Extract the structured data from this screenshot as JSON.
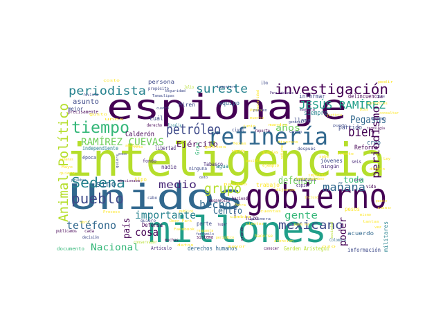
{
  "wordcloud": {
    "palette": {
      "dark_purple": "#440154",
      "purple": "#482878",
      "indigo": "#3e4a89",
      "blue": "#31688e",
      "teal_blue": "#26828e",
      "teal": "#1f9e89",
      "green": "#35b779",
      "light_green": "#6ece58",
      "lime": "#b5de2b",
      "yellow": "#fde725"
    },
    "words": [
      {
        "text": "inteligencia",
        "color": "#b5de2b"
      },
      {
        "text": "espionaje",
        "color": "#440154"
      },
      {
        "text": "Unidos",
        "color": "#31688e"
      },
      {
        "text": "gobierno",
        "color": "#440154"
      },
      {
        "text": "millones",
        "color": "#1f9e89"
      },
      {
        "text": "refinería",
        "color": "#31688e"
      },
      {
        "text": "investigación",
        "color": "#440154"
      },
      {
        "text": "periodista",
        "color": "#26828e"
      },
      {
        "text": "sureste",
        "color": "#26828e"
      },
      {
        "text": "tiempo",
        "color": "#35b779"
      },
      {
        "text": "petróleo",
        "color": "#3e4a89"
      },
      {
        "text": "JESÚS RAMÍREZ",
        "color": "#1f9e89"
      },
      {
        "text": "Pegasus",
        "color": "#31688e"
      },
      {
        "text": "RAMÍREZ CUEVAS",
        "color": "#6ece58"
      },
      {
        "text": "periodismo",
        "color": "#440154"
      },
      {
        "text": "bien",
        "color": "#440154"
      },
      {
        "text": "Animal Político",
        "color": "#b5de2b"
      },
      {
        "text": "Sedena",
        "color": "#26828e"
      },
      {
        "text": "pueblo",
        "color": "#3e4a89"
      },
      {
        "text": "grupo",
        "color": "#b5de2b"
      },
      {
        "text": "medio",
        "color": "#482878"
      },
      {
        "text": "defensor",
        "color": "#6ece58"
      },
      {
        "text": "mañana",
        "color": "#31688e"
      },
      {
        "text": "hecho",
        "color": "#31688e"
      },
      {
        "text": "Centro",
        "color": "#31688e"
      },
      {
        "text": "importante",
        "color": "#26828e"
      },
      {
        "text": "gente",
        "color": "#35b779"
      },
      {
        "text": "mexicano",
        "color": "#3e4a89"
      },
      {
        "text": "teléfono",
        "color": "#31688e"
      },
      {
        "text": "cosa",
        "color": "#440154"
      },
      {
        "text": "país",
        "color": "#440154"
      },
      {
        "text": "poder",
        "color": "#440154"
      },
      {
        "text": "Nacional",
        "color": "#35b779"
      },
      {
        "text": "sino",
        "color": "#31688e"
      },
      {
        "text": "Ejército",
        "color": "#440154"
      },
      {
        "text": "años",
        "color": "#6ece58"
      },
      {
        "text": "toda",
        "color": "#35b779"
      },
      {
        "text": "asunto",
        "color": "#3e4a89"
      },
      {
        "text": "persona",
        "color": "#3e4a89"
      },
      {
        "text": "Calderón",
        "color": "#440154"
      },
      {
        "text": "cuál",
        "color": "#3e4a89"
      },
      {
        "text": "Miren",
        "color": "#3e4a89"
      },
      {
        "text": "equipo",
        "color": "#31688e"
      },
      {
        "text": "llama",
        "color": "#3e4a89"
      },
      {
        "text": "creo",
        "color": "#31688e"
      },
      {
        "text": "partido",
        "color": "#3e4a89"
      },
      {
        "text": "informar",
        "color": "#3e4a89"
      },
      {
        "text": "delincuencia",
        "color": "#440154"
      },
      {
        "text": "siempre",
        "color": "#26828e"
      },
      {
        "text": "Reforma",
        "color": "#440154"
      },
      {
        "text": "independiente",
        "color": "#26828e"
      },
      {
        "text": "libertad",
        "color": "#482878"
      },
      {
        "text": "Tabasco",
        "color": "#482878"
      },
      {
        "text": "nadie",
        "color": "#482878"
      },
      {
        "text": "agua",
        "color": "#26828e"
      },
      {
        "text": "jóvenes",
        "color": "#3e4a89"
      },
      {
        "text": "precisamente",
        "color": "#440154"
      },
      {
        "text": "mejor",
        "color": "#3e4a89"
      },
      {
        "text": "derechos humanos",
        "color": "#31688e"
      },
      {
        "text": "información",
        "color": "#3e4a89"
      },
      {
        "text": "acuerdo",
        "color": "#31688e"
      },
      {
        "text": "Defensa",
        "color": "#440154"
      },
      {
        "text": "parte",
        "color": "#3e4a89"
      },
      {
        "text": "hizo",
        "color": "#440154"
      },
      {
        "text": "trabajo",
        "color": "#fde725"
      },
      {
        "text": "documento",
        "color": "#35b779"
      },
      {
        "text": "militares",
        "color": "#26828e"
      },
      {
        "text": "pesos",
        "color": "#fde725"
      },
      {
        "text": "tipo",
        "color": "#fde725"
      },
      {
        "text": "fondo",
        "color": "#482878"
      },
      {
        "text": "época",
        "color": "#3e4a89"
      },
      {
        "text": "Gran",
        "color": "#35b779"
      },
      {
        "text": "ningún",
        "color": "#482878"
      },
      {
        "text": "ninguna",
        "color": "#3e4a89"
      },
      {
        "text": "seis",
        "color": "#482878"
      },
      {
        "text": "vida",
        "color": "#440154"
      },
      {
        "text": "espiar",
        "color": "#482878"
      },
      {
        "text": "ciudadanos",
        "color": "#482878"
      },
      {
        "text": "civil",
        "color": "#3e4a89"
      },
      {
        "text": "Artículo",
        "color": "#482878"
      },
      {
        "text": "sistema",
        "color": "#440154"
      },
      {
        "text": "Colombia",
        "color": "#31688e"
      },
      {
        "text": "decisión",
        "color": "#3e4a89"
      },
      {
        "text": "publicamos",
        "color": "#440154"
      },
      {
        "text": "cada",
        "color": "#440154"
      },
      {
        "text": "quiero",
        "color": "#3e4a89"
      },
      {
        "text": "revista",
        "color": "#3e4a89"
      },
      {
        "text": "propósito",
        "color": "#3e4a89"
      },
      {
        "text": "Julio",
        "color": "#b5de2b"
      },
      {
        "text": "iba",
        "color": "#3e4a89"
      },
      {
        "text": "Pena adelante",
        "color": "#482878"
      },
      {
        "text": "reporte",
        "color": "#440154"
      },
      {
        "text": "cuatro",
        "color": "#3e4a89"
      },
      {
        "text": "fiscalía",
        "color": "#26828e"
      },
      {
        "text": "derecho",
        "color": "#440154"
      },
      {
        "text": "ejemplo",
        "color": "#fde725"
      },
      {
        "text": "cabo",
        "color": "#3e4a89"
      },
      {
        "text": "gracias",
        "color": "#fde725"
      },
      {
        "text": "haciendo",
        "color": "#440154"
      },
      {
        "text": "desarrollo",
        "color": "#440154"
      },
      {
        "text": "después",
        "color": "#3e4a89"
      },
      {
        "text": "manera",
        "color": "#482878"
      },
      {
        "text": "tecnología",
        "color": "#440154"
      },
      {
        "text": "hacerse",
        "color": "#fde725"
      },
      {
        "text": "muchas",
        "color": "#440154"
      },
      {
        "text": "conservador",
        "color": "#b5de2b"
      },
      {
        "text": "conocer",
        "color": "#440154"
      },
      {
        "text": "Garden Aristegui",
        "color": "#b5de2b"
      },
      {
        "text": "periódico",
        "color": "#fde725"
      },
      {
        "text": "grande",
        "color": "#440154"
      },
      {
        "text": "sociedad",
        "color": "#b5de2b"
      },
      {
        "text": "Cancún",
        "color": "#3e4a89"
      },
      {
        "text": "Cárdenas",
        "color": "#3e4a89"
      },
      {
        "text": "dice",
        "color": "#3e4a89"
      },
      {
        "text": "Petra",
        "color": "#fde725"
      },
      {
        "text": "lugar",
        "color": "#482878"
      },
      {
        "text": "rápido",
        "color": "#fde725"
      },
      {
        "text": "ingeniero",
        "color": "#3e4a89"
      },
      {
        "text": "autoridad",
        "color": "#fde725"
      },
      {
        "text": "mencionaba",
        "color": "#440154"
      },
      {
        "text": "nota",
        "color": "#fde725"
      },
      {
        "text": "pruebas",
        "color": "#31688e"
      },
      {
        "text": "dato",
        "color": "#3e4a89"
      },
      {
        "text": "reunión",
        "color": "#3e4a89"
      },
      {
        "text": "hecho ciudadano",
        "color": "#fde725"
      },
      {
        "text": "sabe",
        "color": "#fde725"
      },
      {
        "text": "general",
        "color": "#3e4a89"
      },
      {
        "text": "justicia",
        "color": "#fde725"
      },
      {
        "text": "Dios",
        "color": "#fde725"
      },
      {
        "text": "Ley",
        "color": "#fde725"
      },
      {
        "text": "acto",
        "color": "#482878"
      },
      {
        "text": "Proceso",
        "color": "#fde725"
      },
      {
        "text": "seguridad",
        "color": "#3e4a89"
      },
      {
        "text": "Pemex",
        "color": "#fde725"
      },
      {
        "text": "Tamaulipas",
        "color": "#3e4a89"
      },
      {
        "text": "quiere",
        "color": "#3e4a89"
      },
      {
        "text": "Deer Park",
        "color": "#fde725"
      },
      {
        "text": "pueden",
        "color": "#3e4a89"
      },
      {
        "text": "muerto",
        "color": "#fde725"
      },
      {
        "text": "Facebook",
        "color": "#fde725"
      },
      {
        "text": "posible",
        "color": "#fde725"
      },
      {
        "text": "Mayo",
        "color": "#fde725"
      },
      {
        "text": "puedo",
        "color": "#3e4a89"
      },
      {
        "text": "atención",
        "color": "#fde725"
      },
      {
        "text": "dinero",
        "color": "#fde725"
      },
      {
        "text": "consultar",
        "color": "#fde725"
      },
      {
        "text": "estudios",
        "color": "#fde725"
      },
      {
        "text": "ojo",
        "color": "#fde725"
      },
      {
        "text": "vez",
        "color": "#fde725"
      },
      {
        "text": "permisos",
        "color": "#3e4a89"
      },
      {
        "text": "gastos",
        "color": "#fde725"
      },
      {
        "text": "pedir",
        "color": "#fde725"
      },
      {
        "text": "puesto",
        "color": "#fde725"
      },
      {
        "text": "caso",
        "color": "#fde725"
      },
      {
        "text": "mismo",
        "color": "#fde725"
      },
      {
        "text": "tantas",
        "color": "#fde725"
      },
      {
        "text": "semanas",
        "color": "#fde725"
      },
      {
        "text": "quiera",
        "color": "#fde725"
      },
      {
        "text": "costo",
        "color": "#fde725"
      },
      {
        "text": "amigos",
        "color": "#fde725"
      },
      {
        "text": "Texas",
        "color": "#fde725"
      },
      {
        "text": "dijeron",
        "color": "#fde725"
      },
      {
        "text": "puedo ver",
        "color": "#fde725"
      },
      {
        "text": "cambio",
        "color": "#fde725"
      },
      {
        "text": "primera",
        "color": "#3e4a89"
      },
      {
        "text": "respuesta",
        "color": "#fde725"
      },
      {
        "text": "cuentas",
        "color": "#fde725"
      },
      {
        "text": "fentanilo",
        "color": "#3e4a89"
      },
      {
        "text": "pasado",
        "color": "#fde725"
      },
      {
        "text": "diversos",
        "color": "#fde725"
      },
      {
        "text": "mandos",
        "color": "#fde725"
      },
      {
        "text": "junio",
        "color": "#fde725"
      },
      {
        "text": "mediante",
        "color": "#fde725"
      },
      {
        "text": "frente",
        "color": "#fde725"
      },
      {
        "text": "importa",
        "color": "#fde725"
      },
      {
        "text": "incluso",
        "color": "#fde725"
      },
      {
        "text": "datos",
        "color": "#fde725"
      },
      {
        "text": "mayor",
        "color": "#fde725"
      },
      {
        "text": "abril",
        "color": "#fde725"
      },
      {
        "text": "publicó",
        "color": "#fde725"
      },
      {
        "text": "cientos",
        "color": "#fde725"
      },
      {
        "text": "unos",
        "color": "#fde725"
      },
      {
        "text": "gusto",
        "color": "#fde725"
      },
      {
        "text": "pregunta",
        "color": "#fde725"
      },
      {
        "text": "Chiapas",
        "color": "#fde725"
      },
      {
        "text": "diversas",
        "color": "#fde725"
      }
    ]
  }
}
